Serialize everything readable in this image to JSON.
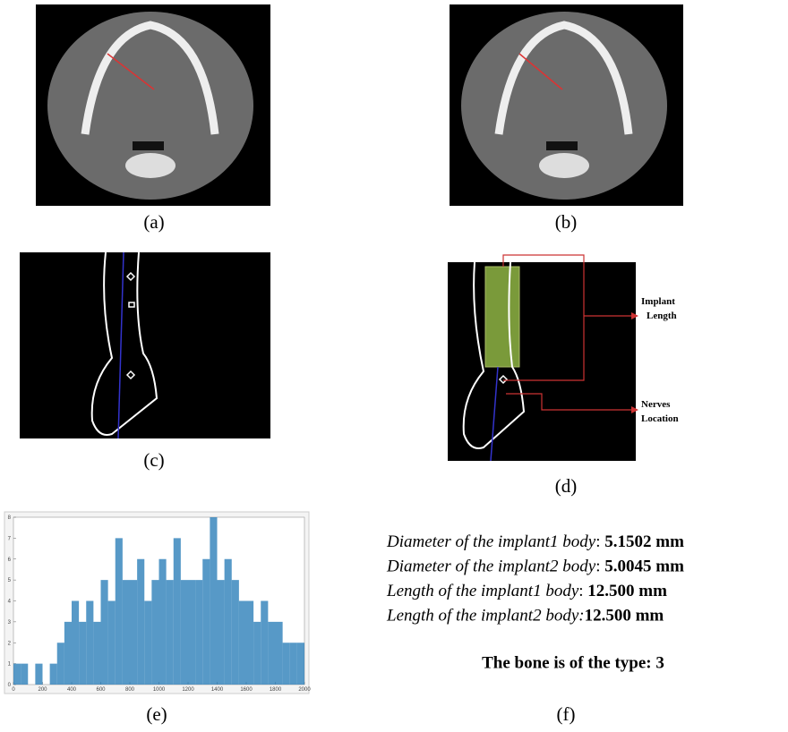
{
  "panels": {
    "a": {
      "caption": "(a)"
    },
    "b": {
      "caption": "(b)"
    },
    "c": {
      "caption": "(c)"
    },
    "d": {
      "caption": "(d)",
      "annotations": [
        "Implant",
        "Length",
        "Nerves",
        "Location"
      ]
    },
    "e": {
      "caption": "(e)"
    },
    "f": {
      "caption": "(f)",
      "lines": [
        {
          "label": "Diameter of the implant1 body",
          "sep": ": ",
          "value": "5.1502 mm"
        },
        {
          "label": "Diameter of the implant2 body",
          "sep": ": ",
          "value": "5.0045 mm"
        },
        {
          "label": "Length of the implant1 body",
          "sep": ": ",
          "value": "12.500 mm"
        },
        {
          "label": "Length of the implant2 body",
          "sep": ":",
          "value": "12.500 mm"
        }
      ],
      "result": "The bone is of the type: 3"
    }
  },
  "chart_data": {
    "type": "histogram",
    "color": "#1f77b4",
    "bins": [
      0,
      50,
      100,
      150,
      200,
      250,
      300,
      350,
      400,
      450,
      500,
      550,
      600,
      650,
      700,
      750,
      800,
      850,
      900,
      950,
      1000,
      1050,
      1100,
      1150,
      1200,
      1250,
      1300,
      1350,
      1400,
      1450,
      1500,
      1550,
      1600,
      1650,
      1700,
      1750,
      1800,
      1850,
      1900,
      1950,
      2000
    ],
    "values": [
      1,
      1,
      0,
      1,
      0,
      1,
      2,
      3,
      4,
      3,
      4,
      3,
      5,
      4,
      7,
      5,
      5,
      6,
      4,
      5,
      6,
      5,
      7,
      5,
      5,
      5,
      6,
      8,
      5,
      6,
      5,
      4,
      4,
      3,
      4,
      3,
      3,
      2,
      2,
      2
    ],
    "xlim": [
      0,
      2000
    ],
    "xticks": [
      0,
      200,
      400,
      600,
      800,
      1000,
      1200,
      1400,
      1600,
      1800,
      2000
    ],
    "ylim": [
      0,
      8
    ],
    "yticks": [
      0,
      1,
      2,
      3,
      4,
      5,
      6,
      7,
      8
    ]
  }
}
